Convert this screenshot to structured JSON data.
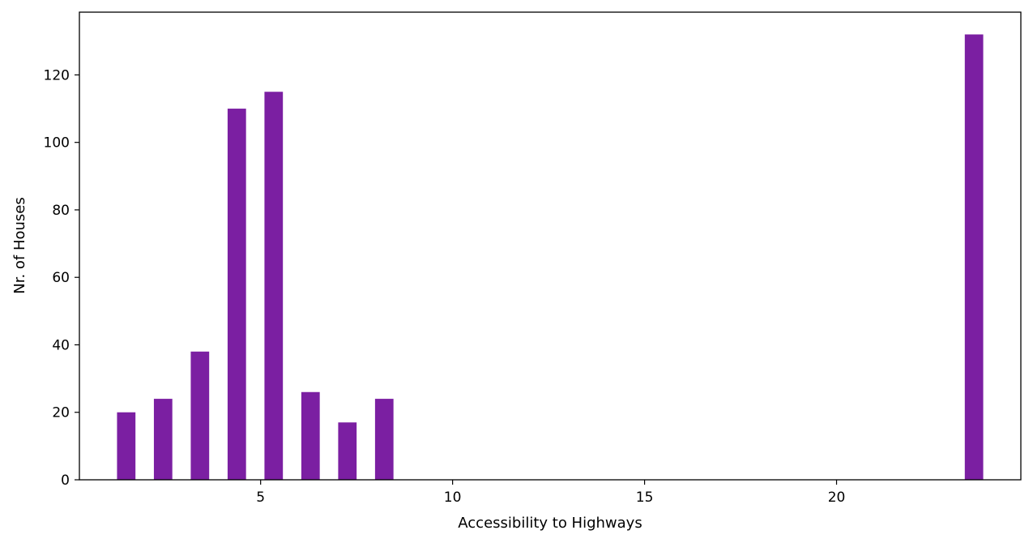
{
  "chart_data": {
    "type": "bar",
    "title": "",
    "xlabel": "Accessibility to Highways",
    "ylabel": "Nr. of Houses",
    "x": [
      1.5,
      2.46,
      3.42,
      4.38,
      5.34,
      6.3,
      7.26,
      8.22,
      23.58
    ],
    "values": [
      20,
      24,
      38,
      110,
      115,
      26,
      17,
      24,
      132
    ],
    "bar_width": 0.48,
    "xlim": [
      0.28,
      24.8
    ],
    "ylim": [
      0,
      138.6
    ],
    "xticks": [
      5,
      10,
      15,
      20
    ],
    "yticks": [
      0,
      20,
      40,
      60,
      80,
      100,
      120
    ],
    "bar_color": "#7b1fa2",
    "grid": false,
    "legend": "none"
  }
}
